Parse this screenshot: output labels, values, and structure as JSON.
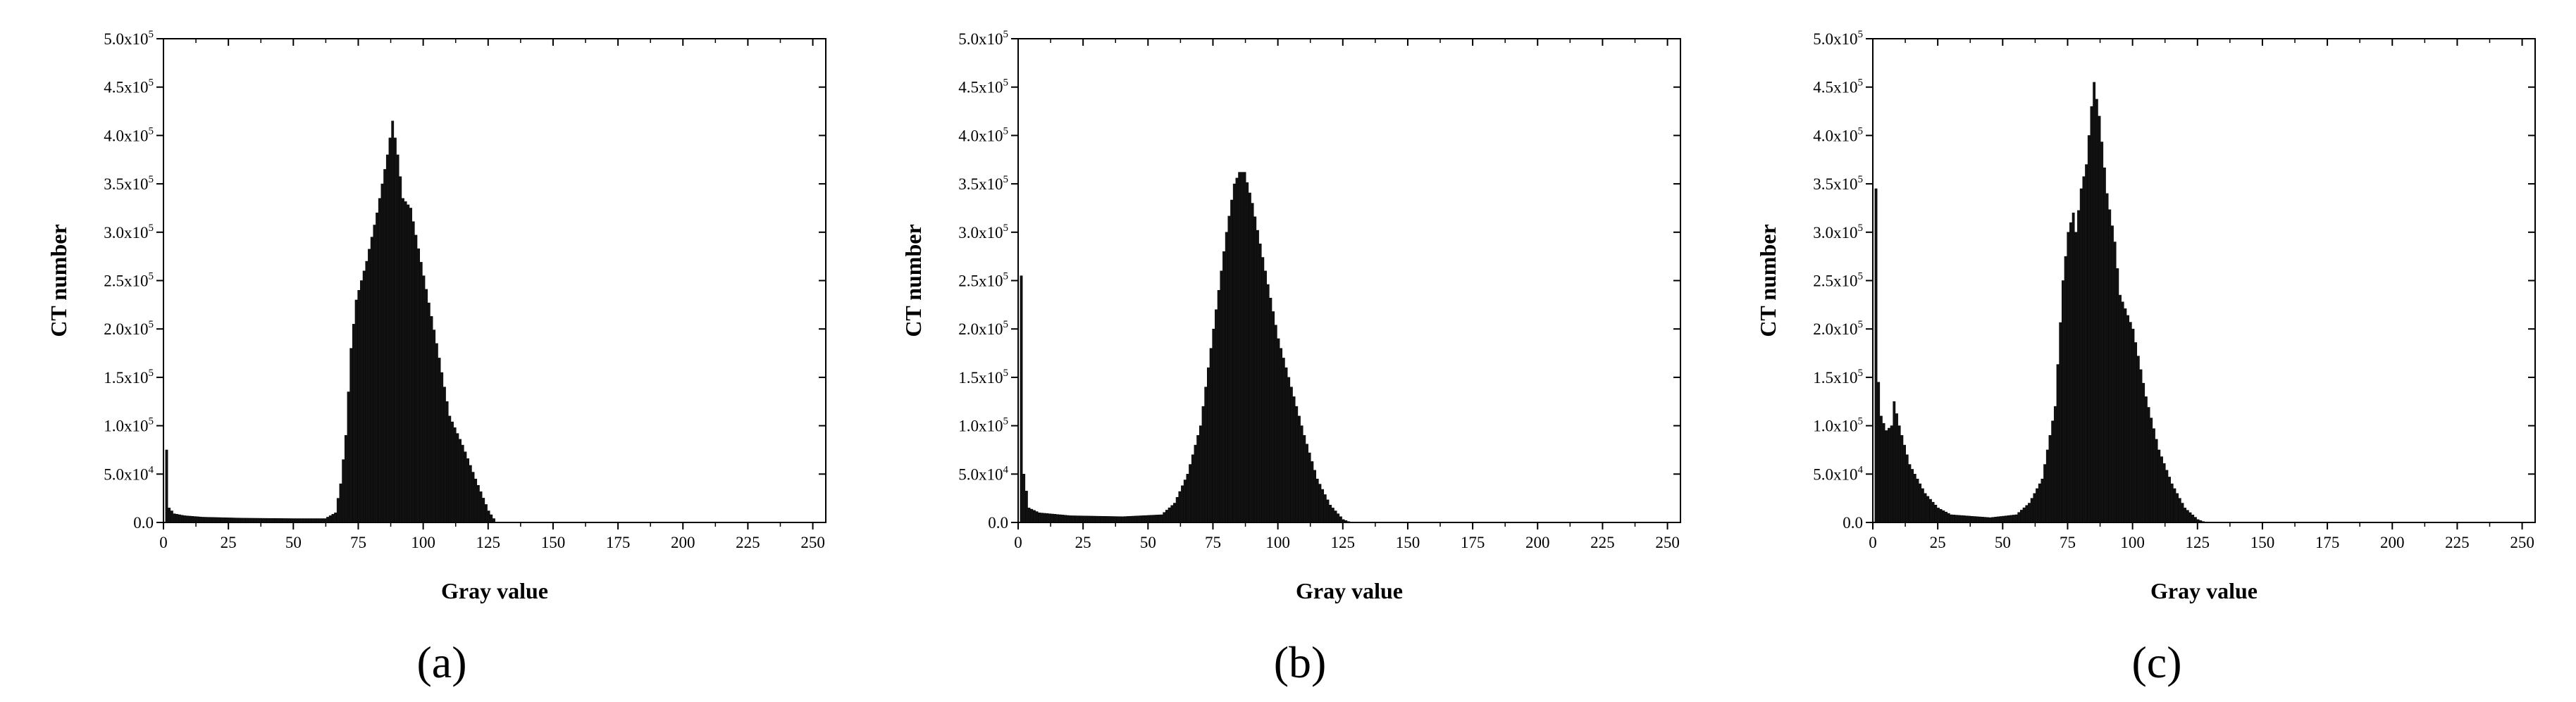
{
  "chart_data": [
    {
      "type": "bar",
      "panel_label": "(a)",
      "xlabel": "Gray value",
      "ylabel": "CT number",
      "xlim": [
        0,
        255
      ],
      "ylim": [
        0,
        500000
      ],
      "xticks": [
        "0",
        "25",
        "50",
        "75",
        "100",
        "125",
        "150",
        "175",
        "200",
        "225",
        "250"
      ],
      "yticks": [
        {
          "base": "0.0",
          "exp": ""
        },
        {
          "base": "5.0x10",
          "exp": "4"
        },
        {
          "base": "1.0x10",
          "exp": "5"
        },
        {
          "base": "1.5x10",
          "exp": "5"
        },
        {
          "base": "2.0x10",
          "exp": "5"
        },
        {
          "base": "2.5x10",
          "exp": "5"
        },
        {
          "base": "3.0x10",
          "exp": "5"
        },
        {
          "base": "3.5x10",
          "exp": "5"
        },
        {
          "base": "4.0x10",
          "exp": "5"
        },
        {
          "base": "4.5x10",
          "exp": "5"
        },
        {
          "base": "5.0x10",
          "exp": "5"
        }
      ],
      "profile": [
        [
          0,
          0
        ],
        [
          1,
          75000
        ],
        [
          2,
          15000
        ],
        [
          4,
          9000
        ],
        [
          8,
          7000
        ],
        [
          15,
          5500
        ],
        [
          30,
          4500
        ],
        [
          50,
          4000
        ],
        [
          62,
          4000
        ],
        [
          66,
          10000
        ],
        [
          68,
          40000
        ],
        [
          70,
          90000
        ],
        [
          72,
          180000
        ],
        [
          74,
          230000
        ],
        [
          78,
          270000
        ],
        [
          82,
          320000
        ],
        [
          86,
          380000
        ],
        [
          88,
          415000
        ],
        [
          90,
          380000
        ],
        [
          92,
          335000
        ],
        [
          95,
          325000
        ],
        [
          100,
          255000
        ],
        [
          105,
          185000
        ],
        [
          110,
          110000
        ],
        [
          115,
          80000
        ],
        [
          120,
          45000
        ],
        [
          125,
          12000
        ],
        [
          128,
          0
        ],
        [
          255,
          0
        ]
      ]
    },
    {
      "type": "bar",
      "panel_label": "(b)",
      "xlabel": "Gray value",
      "ylabel": "CT number",
      "xlim": [
        0,
        255
      ],
      "ylim": [
        0,
        500000
      ],
      "xticks": [
        "0",
        "25",
        "50",
        "75",
        "100",
        "125",
        "150",
        "175",
        "200",
        "225",
        "250"
      ],
      "yticks": [
        {
          "base": "0.0",
          "exp": ""
        },
        {
          "base": "5.0x10",
          "exp": "4"
        },
        {
          "base": "1.0x10",
          "exp": "5"
        },
        {
          "base": "1.5x10",
          "exp": "5"
        },
        {
          "base": "2.0x10",
          "exp": "5"
        },
        {
          "base": "2.5x10",
          "exp": "5"
        },
        {
          "base": "3.0x10",
          "exp": "5"
        },
        {
          "base": "3.5x10",
          "exp": "5"
        },
        {
          "base": "4.0x10",
          "exp": "5"
        },
        {
          "base": "4.5x10",
          "exp": "5"
        },
        {
          "base": "5.0x10",
          "exp": "5"
        }
      ],
      "profile": [
        [
          0,
          0
        ],
        [
          1,
          255000
        ],
        [
          2,
          50000
        ],
        [
          4,
          15000
        ],
        [
          8,
          10000
        ],
        [
          20,
          7000
        ],
        [
          40,
          6000
        ],
        [
          55,
          8000
        ],
        [
          60,
          20000
        ],
        [
          65,
          50000
        ],
        [
          70,
          100000
        ],
        [
          75,
          200000
        ],
        [
          78,
          260000
        ],
        [
          80,
          300000
        ],
        [
          83,
          350000
        ],
        [
          85,
          362000
        ],
        [
          87,
          362000
        ],
        [
          90,
          330000
        ],
        [
          95,
          260000
        ],
        [
          100,
          190000
        ],
        [
          105,
          140000
        ],
        [
          110,
          90000
        ],
        [
          115,
          45000
        ],
        [
          120,
          18000
        ],
        [
          125,
          3000
        ],
        [
          128,
          0
        ],
        [
          255,
          0
        ]
      ]
    },
    {
      "type": "bar",
      "panel_label": "(c)",
      "xlabel": "Gray value",
      "ylabel": "CT number",
      "xlim": [
        0,
        255
      ],
      "ylim": [
        0,
        500000
      ],
      "xticks": [
        "0",
        "25",
        "50",
        "75",
        "100",
        "125",
        "150",
        "175",
        "200",
        "225",
        "250"
      ],
      "yticks": [
        {
          "base": "0.0",
          "exp": ""
        },
        {
          "base": "5.0x10",
          "exp": "4"
        },
        {
          "base": "1.0x10",
          "exp": "5"
        },
        {
          "base": "1.5x10",
          "exp": "5"
        },
        {
          "base": "2.0x10",
          "exp": "5"
        },
        {
          "base": "2.5x10",
          "exp": "5"
        },
        {
          "base": "3.0x10",
          "exp": "5"
        },
        {
          "base": "3.5x10",
          "exp": "5"
        },
        {
          "base": "4.0x10",
          "exp": "5"
        },
        {
          "base": "4.5x10",
          "exp": "5"
        },
        {
          "base": "5.0x10",
          "exp": "5"
        }
      ],
      "profile": [
        [
          0,
          0
        ],
        [
          1,
          345000
        ],
        [
          2,
          145000
        ],
        [
          3,
          110000
        ],
        [
          5,
          95000
        ],
        [
          7,
          100000
        ],
        [
          8,
          125000
        ],
        [
          10,
          100000
        ],
        [
          14,
          60000
        ],
        [
          20,
          30000
        ],
        [
          25,
          15000
        ],
        [
          30,
          8000
        ],
        [
          45,
          5000
        ],
        [
          55,
          8000
        ],
        [
          60,
          20000
        ],
        [
          65,
          45000
        ],
        [
          70,
          120000
        ],
        [
          73,
          250000
        ],
        [
          75,
          300000
        ],
        [
          77,
          320000
        ],
        [
          78,
          300000
        ],
        [
          80,
          345000
        ],
        [
          82,
          370000
        ],
        [
          84,
          430000
        ],
        [
          85,
          455000
        ],
        [
          87,
          420000
        ],
        [
          90,
          340000
        ],
        [
          93,
          290000
        ],
        [
          95,
          235000
        ],
        [
          100,
          200000
        ],
        [
          105,
          130000
        ],
        [
          110,
          75000
        ],
        [
          115,
          40000
        ],
        [
          120,
          15000
        ],
        [
          125,
          3000
        ],
        [
          128,
          0
        ],
        [
          255,
          0
        ]
      ]
    }
  ]
}
